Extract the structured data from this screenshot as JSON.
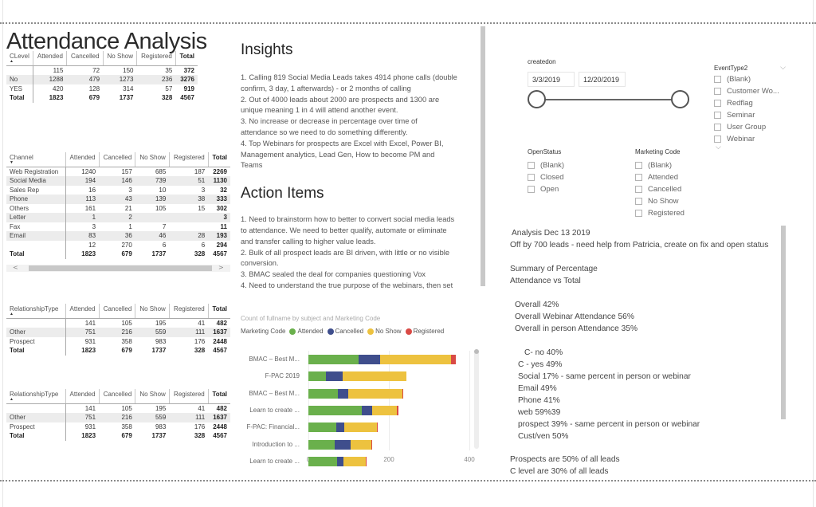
{
  "page": {
    "title": "Attendance Analysis"
  },
  "tables": {
    "clevel": {
      "columns": [
        "CLevel",
        "Attended",
        "Cancelled",
        "No Show",
        "Registered",
        "Total"
      ],
      "rows": [
        {
          "label": "",
          "values": [
            "115",
            "72",
            "150",
            "35",
            "372"
          ]
        },
        {
          "label": "No",
          "values": [
            "1288",
            "479",
            "1273",
            "236",
            "3276"
          ]
        },
        {
          "label": "YES",
          "values": [
            "420",
            "128",
            "314",
            "57",
            "919"
          ]
        }
      ],
      "total": {
        "label": "Total",
        "values": [
          "1823",
          "679",
          "1737",
          "328",
          "4567"
        ]
      }
    },
    "channel": {
      "columns": [
        "Channel",
        "Attended",
        "Cancelled",
        "No Show",
        "Registered",
        "Total"
      ],
      "rows": [
        {
          "label": "Web Registration",
          "values": [
            "1240",
            "157",
            "685",
            "187",
            "2269"
          ]
        },
        {
          "label": "Social Media",
          "values": [
            "194",
            "146",
            "739",
            "51",
            "1130"
          ]
        },
        {
          "label": "Sales Rep",
          "values": [
            "16",
            "3",
            "10",
            "3",
            "32"
          ]
        },
        {
          "label": "Phone",
          "values": [
            "113",
            "43",
            "139",
            "38",
            "333"
          ]
        },
        {
          "label": "Others",
          "values": [
            "161",
            "21",
            "105",
            "15",
            "302"
          ]
        },
        {
          "label": "Letter",
          "values": [
            "1",
            "2",
            "",
            "",
            "3"
          ]
        },
        {
          "label": "Fax",
          "values": [
            "3",
            "1",
            "7",
            "",
            "11"
          ]
        },
        {
          "label": "Email",
          "values": [
            "83",
            "36",
            "46",
            "28",
            "193"
          ]
        },
        {
          "label": "",
          "values": [
            "12",
            "270",
            "6",
            "6",
            "294"
          ]
        }
      ],
      "total": {
        "label": "Total",
        "values": [
          "1823",
          "679",
          "1737",
          "328",
          "4567"
        ]
      },
      "scroll_left": "<",
      "scroll_right": ">"
    },
    "relationship_1": {
      "columns": [
        "RelationshipType",
        "Attended",
        "Cancelled",
        "No Show",
        "Registered",
        "Total"
      ],
      "rows": [
        {
          "label": "",
          "values": [
            "141",
            "105",
            "195",
            "41",
            "482"
          ]
        },
        {
          "label": "Other",
          "values": [
            "751",
            "216",
            "559",
            "111",
            "1637"
          ]
        },
        {
          "label": "Prospect",
          "values": [
            "931",
            "358",
            "983",
            "176",
            "2448"
          ]
        }
      ],
      "total": {
        "label": "Total",
        "values": [
          "1823",
          "679",
          "1737",
          "328",
          "4567"
        ]
      }
    },
    "relationship_2": {
      "columns": [
        "RelationshipType",
        "Attended",
        "Cancelled",
        "No Show",
        "Registered",
        "Total"
      ],
      "rows": [
        {
          "label": "",
          "values": [
            "141",
            "105",
            "195",
            "41",
            "482"
          ]
        },
        {
          "label": "Other",
          "values": [
            "751",
            "216",
            "559",
            "111",
            "1637"
          ]
        },
        {
          "label": "Prospect",
          "values": [
            "931",
            "358",
            "983",
            "176",
            "2448"
          ]
        }
      ],
      "total": {
        "label": "Total",
        "values": [
          "1823",
          "679",
          "1737",
          "328",
          "4567"
        ]
      }
    }
  },
  "insights": {
    "heading": "Insights",
    "lines": [
      "1.  Calling 819 Social Media Leads takes 4914 phone calls (double",
      "confirm, 3 day, 1 afterwards) - or 2 months of calling",
      "2. Out of 4000 leads about 2000 are prospects and 1300 are",
      "unique meaning 1 in 4 will attend another event.",
      "3. No increase or decrease in percentage over time of",
      "attendance so we need to do something differently.",
      "4. Top Webinars for prospects are Excel with Excel, Power BI,",
      "Management analytics, Lead Gen, How to become PM and",
      "Teams"
    ]
  },
  "actions": {
    "heading": "Action Items",
    "lines": [
      "1. Need to brainstorm how to better to convert social media leads",
      "to attendance.  We need to better qualify, automate or eliminate",
      "and transfer calling to higher value leads.",
      "2. Bulk of all prospect leads are BI driven, with little or no visible",
      "conversion.",
      "3. BMAC sealed the deal for companies questioning Vox",
      "4. Need to understand the true purpose of the webinars, then set"
    ]
  },
  "chart_data": {
    "type": "bar",
    "orientation": "horizontal",
    "stacked": true,
    "title": "Count of fullname by subject and Marketing Code",
    "legend_title": "Marketing Code",
    "legend_position": "top",
    "categories": [
      "BMAC – Best M...",
      "F-PAC 2019",
      "BMAC – Best M...",
      "Learn to create ...",
      "F-PAC: Financial...",
      "Introduction to ...",
      "Learn to create ..."
    ],
    "series": [
      {
        "name": "Attended",
        "color": "#6ab04c",
        "values": [
          124,
          43,
          73,
          132,
          70,
          65,
          72
        ]
      },
      {
        "name": "Cancelled",
        "color": "#3f4e8c",
        "values": [
          55,
          43,
          26,
          27,
          19,
          39,
          16
        ]
      },
      {
        "name": "No Show",
        "color": "#edc23f",
        "values": [
          175,
          158,
          135,
          61,
          81,
          52,
          54
        ]
      },
      {
        "name": "Registered",
        "color": "#d94a45",
        "values": [
          13,
          0,
          2,
          3,
          2,
          2,
          2
        ]
      }
    ],
    "xlabel": "",
    "ylabel": "",
    "xlim": [
      0,
      400
    ],
    "xticks": [
      "0",
      "200",
      "400"
    ],
    "grid": true
  },
  "filters": {
    "createdon": {
      "label": "createdon",
      "start": "3/3/2019",
      "end": "12/20/2019"
    },
    "event_type": {
      "label": "EventType2",
      "items": [
        "(Blank)",
        "Customer Wo...",
        "Redflag",
        "Seminar",
        "User Group",
        "Webinar"
      ]
    },
    "open_status": {
      "label": "OpenStatus",
      "items": [
        "(Blank)",
        "Closed",
        "Open"
      ]
    },
    "marketing_code": {
      "label": "Marketing Code",
      "items": [
        "(Blank)",
        "Attended",
        "Cancelled",
        "No Show",
        "Registered"
      ]
    }
  },
  "analysis": {
    "title": "Analysis Dec 13 2019",
    "note": "Off by 700 leads - need help from Patricia, create on fix and open status",
    "summary_1": "Summary of Percentage",
    "summary_2": "Attendance vs Total",
    "overall": [
      "Overall   42%",
      "Overall Webinar Attendance 56%",
      "Overall in person Attendance 35%"
    ],
    "c_no": "C- no  40%",
    "breakdown": [
      "C - yes  49%",
      "Social  17%  - same percent in person or webinar",
      "Email  49%",
      "Phone  41%",
      "web  59%39",
      "prospect  39% - same percent in person or webinar",
      "Cust/ven   50%"
    ],
    "footer": [
      "Prospects are 50% of all leads",
      "C level are 30% of all leads"
    ]
  }
}
